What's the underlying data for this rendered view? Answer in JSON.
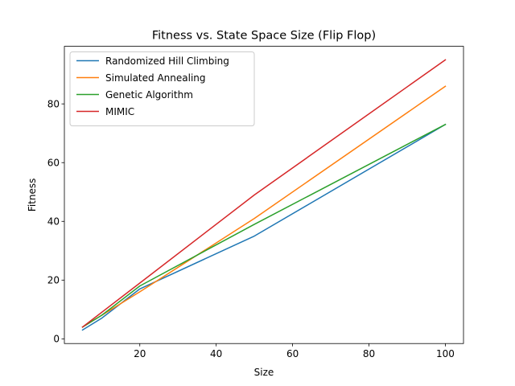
{
  "chart_data": {
    "type": "line",
    "title": "Fitness vs. State Space Size (Flip Flop)",
    "xlabel": "Size",
    "ylabel": "Fitness",
    "xlim": [
      0.25,
      104.75
    ],
    "ylim": [
      -1.6,
      99.6
    ],
    "xticks": [
      20,
      40,
      60,
      80,
      100
    ],
    "yticks": [
      0,
      20,
      40,
      60,
      80
    ],
    "grid": false,
    "legend_position": "top-left",
    "x": [
      5,
      10,
      20,
      50,
      100
    ],
    "series": [
      {
        "name": "Randomized Hill Climbing",
        "color": "#1f77b4",
        "values": [
          3,
          7,
          17,
          35,
          73
        ]
      },
      {
        "name": "Simulated Annealing",
        "color": "#ff7f0e",
        "values": [
          4,
          8,
          16,
          41,
          86
        ]
      },
      {
        "name": "Genetic Algorithm",
        "color": "#2ca02c",
        "values": [
          4,
          8,
          18,
          39,
          73
        ]
      },
      {
        "name": "MIMIC",
        "color": "#d62728",
        "values": [
          4,
          9,
          19,
          49,
          95
        ]
      }
    ]
  }
}
